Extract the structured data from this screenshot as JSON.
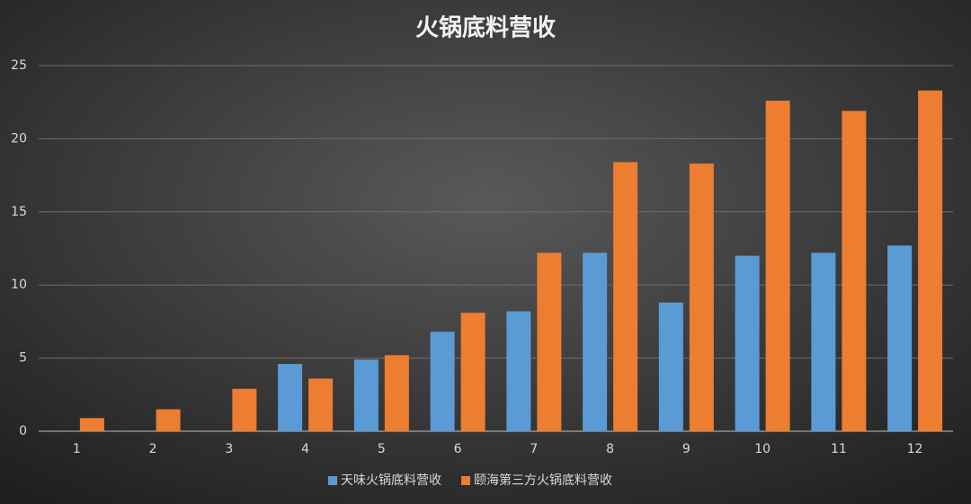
{
  "chart_data": {
    "type": "bar",
    "title": "火锅底料营收",
    "categories": [
      "1",
      "2",
      "3",
      "4",
      "5",
      "6",
      "7",
      "8",
      "9",
      "10",
      "11",
      "12"
    ],
    "series": [
      {
        "name": "天味火锅底料营收",
        "color": "#5b9bd5",
        "values": [
          null,
          null,
          null,
          4.6,
          4.9,
          6.8,
          8.2,
          12.2,
          8.8,
          12.0,
          12.2,
          12.7
        ]
      },
      {
        "name": "颐海第三方火锅底料营收",
        "color": "#ed7d31",
        "values": [
          0.9,
          1.5,
          2.9,
          3.6,
          5.2,
          8.1,
          12.2,
          18.4,
          18.3,
          22.6,
          21.9,
          23.3
        ]
      }
    ],
    "ylim": [
      0,
      25
    ],
    "yticks": [
      0,
      5,
      10,
      15,
      20,
      25
    ],
    "grid": true,
    "legend": "bottom"
  }
}
